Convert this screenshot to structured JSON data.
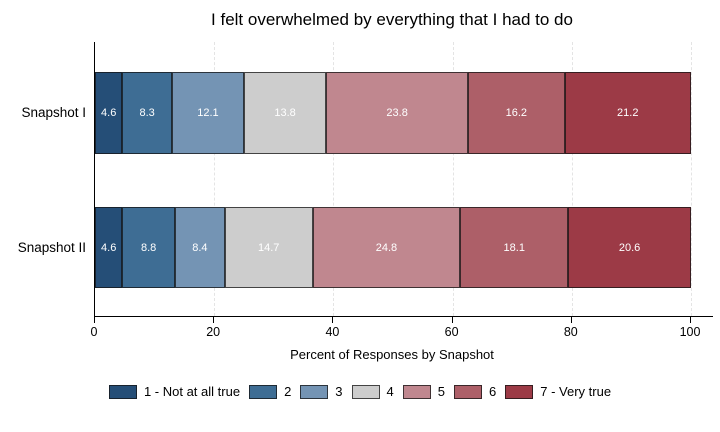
{
  "chart_data": {
    "type": "bar",
    "variant": "stacked-horizontal",
    "title": "I felt overwhelmed by everything that I had to do",
    "xlabel": "Percent of Responses by Snapshot",
    "xlim": [
      0,
      100
    ],
    "x_ticks": [
      "0",
      "20",
      "40",
      "60",
      "80",
      "100"
    ],
    "grid": "vertical dashed light-gray at 20/40/60/80/100",
    "legend_position": "bottom-center",
    "categories": [
      "Snapshot I",
      "Snapshot II"
    ],
    "colors": [
      "#254E77",
      "#3E6D94",
      "#7494B4",
      "#CDCDCD",
      "#C0878F",
      "#AD5F68",
      "#9C3A46"
    ],
    "series": [
      {
        "name": "1 - Not at all true",
        "values": [
          4.6,
          4.6
        ]
      },
      {
        "name": "2",
        "values": [
          8.3,
          8.8
        ]
      },
      {
        "name": "3",
        "values": [
          12.1,
          8.4
        ]
      },
      {
        "name": "4",
        "values": [
          13.8,
          14.7
        ]
      },
      {
        "name": "5",
        "values": [
          23.8,
          24.8
        ]
      },
      {
        "name": "6",
        "values": [
          16.2,
          18.1
        ]
      },
      {
        "name": "7 - Very true",
        "values": [
          21.2,
          20.6
        ]
      }
    ],
    "rows": [
      {
        "label": "Snapshot I",
        "values": [
          4.6,
          8.3,
          12.1,
          13.8,
          23.8,
          16.2,
          21.2
        ]
      },
      {
        "label": "Snapshot II",
        "values": [
          4.6,
          8.8,
          8.4,
          14.7,
          24.8,
          18.1,
          20.6
        ]
      }
    ]
  }
}
